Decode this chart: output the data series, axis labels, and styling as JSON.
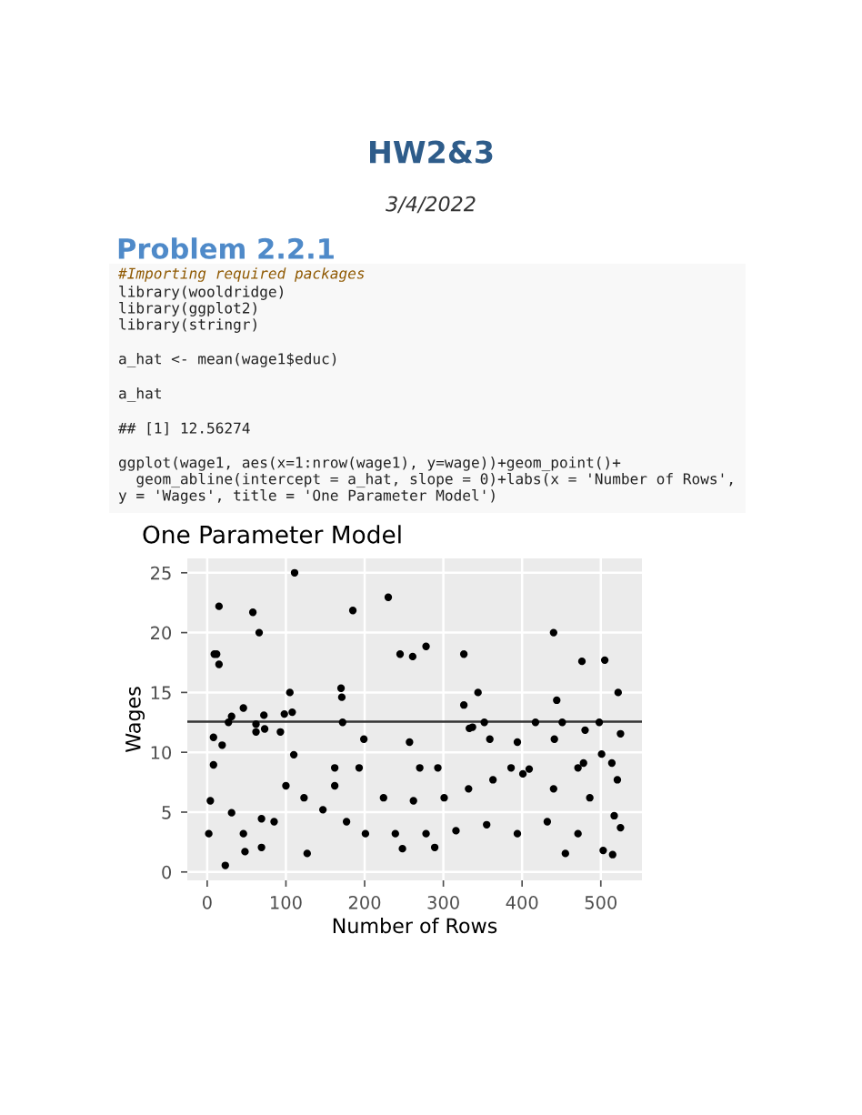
{
  "chart_data": {
    "type": "scatter",
    "title": "One Parameter Model",
    "xlabel": "Number of Rows",
    "ylabel": "Wages",
    "annotations": [
      "HW2&3",
      "3/4/2022",
      "Problem 2.2.1",
      "#Importing required packages",
      "library(wooldridge)",
      "library(ggplot2)",
      "library(stringr)",
      "a_hat <- mean(wage1$educ)",
      "a_hat",
      "## [1] 12.56274",
      "ggplot(wage1, aes(x=1:nrow(wage1), y=wage))+geom_point()+",
      "  geom_abline(intercept = a_hat, slope = 0)+labs(x = 'Number of Rows',",
      "y = 'Wages', title = 'One Parameter Model')"
    ],
    "series": [
      {
        "color": "#000000",
        "x": [
          8,
          9,
          12,
          15,
          15,
          19,
          27,
          31,
          46,
          58,
          66,
          62,
          62,
          73,
          72,
          93,
          98,
          105,
          108,
          111,
          110,
          170,
          171,
          172,
          185,
          199,
          230,
          245,
          261,
          278,
          257,
          326,
          326,
          344,
          337,
          333,
          352,
          417,
          440,
          444,
          441,
          451,
          480,
          476,
          498,
          505,
          522,
          525,
          359,
          394,
          478,
          501,
          514,
          23,
          48,
          69,
          127,
          248,
          289,
          455,
          503,
          515,
          2,
          4,
          8,
          31,
          85,
          147,
          162,
          201,
          239,
          278,
          316,
          355,
          394,
          432,
          471,
          517,
          521,
          525,
          177,
          123,
          224,
          262,
          301,
          332,
          363,
          401,
          440,
          486,
          46,
          69,
          100,
          193,
          270,
          386,
          471,
          162,
          293,
          409
        ],
        "values": [
          11.25,
          18.2,
          18.2,
          22.2,
          17.35,
          10.6,
          12.5,
          13,
          13.7,
          21.7,
          20,
          12.35,
          11.7,
          11.95,
          13.1,
          11.7,
          13.2,
          15,
          13.35,
          25,
          9.8,
          15.35,
          14.6,
          12.5,
          21.85,
          11.1,
          22.95,
          18.2,
          18,
          18.85,
          10.85,
          18.2,
          13.95,
          15,
          12.1,
          12,
          12.5,
          12.5,
          20,
          14.35,
          11.1,
          12.5,
          11.85,
          17.6,
          12.5,
          17.7,
          15,
          11.55,
          11.1,
          10.85,
          9.1,
          9.85,
          9.1,
          0.55,
          1.7,
          2.05,
          1.55,
          1.95,
          2.05,
          1.55,
          1.8,
          1.45,
          3.2,
          5.95,
          8.95,
          4.95,
          4.2,
          5.2,
          7.2,
          3.2,
          3.2,
          3.2,
          3.45,
          3.95,
          3.2,
          4.2,
          3.2,
          4.7,
          7.7,
          3.7,
          4.2,
          6.2,
          6.2,
          5.95,
          6.2,
          6.95,
          7.7,
          8.2,
          6.95,
          6.2,
          3.2,
          4.45,
          7.2,
          8.7,
          8.7,
          8.7,
          8.7,
          8.7,
          8.7,
          8.6
        ]
      }
    ],
    "xlim": [
      -25.25,
      552.25
    ],
    "xticks": [
      0,
      100,
      200,
      300,
      400,
      500
    ],
    "ylim": [
      -0.7,
      26.2
    ],
    "yticks": [
      0,
      5,
      10,
      15,
      20,
      25
    ],
    "grid": true,
    "marker": "circle",
    "ref_lines": [
      {
        "axis": "y",
        "value": 12.56274,
        "color": "#333333"
      }
    ]
  }
}
